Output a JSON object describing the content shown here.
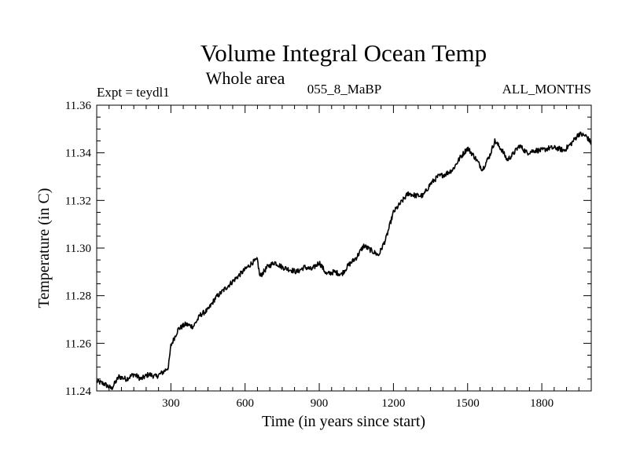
{
  "chart_data": {
    "type": "line",
    "title": "Volume Integral Ocean Temp",
    "subtitle": "Whole area",
    "labels": {
      "left": "Expt = teydl1",
      "center": "055_8_MaBP",
      "right": "ALL_MONTHS"
    },
    "xlabel": "Time (in years since start)",
    "ylabel": "Temperature (in C)",
    "xlim": [
      0,
      2000
    ],
    "ylim": [
      11.24,
      11.36
    ],
    "x_ticks": [
      300,
      600,
      900,
      1200,
      1500,
      1800
    ],
    "y_ticks": [
      "11.24",
      "11.26",
      "11.28",
      "11.30",
      "11.32",
      "11.34",
      "11.36"
    ],
    "grid": false,
    "series": [
      {
        "name": "teydl1",
        "x": [
          0,
          30,
          60,
          90,
          120,
          150,
          180,
          210,
          240,
          270,
          290,
          300,
          330,
          360,
          390,
          420,
          450,
          480,
          510,
          540,
          570,
          600,
          630,
          650,
          660,
          690,
          720,
          750,
          780,
          810,
          840,
          870,
          900,
          930,
          960,
          990,
          1020,
          1050,
          1080,
          1110,
          1140,
          1170,
          1200,
          1230,
          1260,
          1290,
          1320,
          1350,
          1380,
          1410,
          1440,
          1470,
          1500,
          1530,
          1560,
          1590,
          1610,
          1640,
          1660,
          1680,
          1710,
          1740,
          1770,
          1800,
          1830,
          1860,
          1890,
          1920,
          1950,
          1980,
          2000
        ],
        "values": [
          11.244,
          11.243,
          11.241,
          11.246,
          11.245,
          11.247,
          11.245,
          11.247,
          11.246,
          11.248,
          11.25,
          11.259,
          11.266,
          11.268,
          11.267,
          11.272,
          11.274,
          11.279,
          11.282,
          11.285,
          11.288,
          11.291,
          11.294,
          11.295,
          11.288,
          11.292,
          11.294,
          11.292,
          11.291,
          11.29,
          11.292,
          11.291,
          11.294,
          11.289,
          11.29,
          11.289,
          11.293,
          11.296,
          11.301,
          11.299,
          11.297,
          11.304,
          11.315,
          11.319,
          11.323,
          11.322,
          11.322,
          11.327,
          11.33,
          11.331,
          11.333,
          11.338,
          11.342,
          11.338,
          11.333,
          11.339,
          11.345,
          11.341,
          11.337,
          11.339,
          11.343,
          11.34,
          11.341,
          11.341,
          11.342,
          11.342,
          11.341,
          11.344,
          11.348,
          11.347,
          11.344
        ]
      }
    ]
  }
}
